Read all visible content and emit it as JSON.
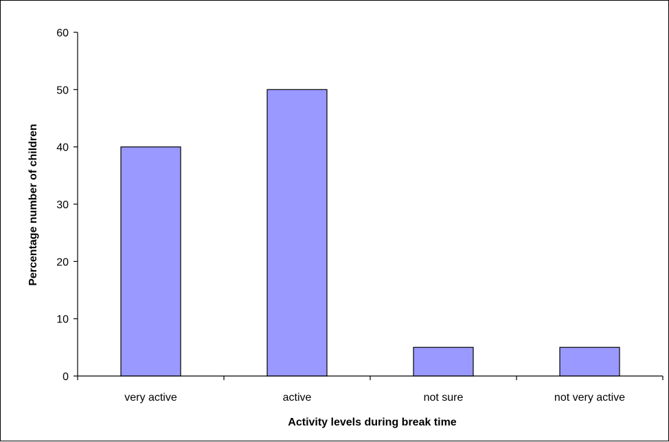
{
  "chart_data": {
    "type": "bar",
    "categories": [
      "very active",
      "active",
      "not sure",
      "not very active"
    ],
    "values": [
      40,
      50,
      5,
      5
    ],
    "title": "",
    "xlabel": "Activity levels during break time",
    "ylabel": "Percentage number of children",
    "ylim": [
      0,
      60
    ],
    "yticks": [
      "0",
      "10",
      "20",
      "30",
      "40",
      "50",
      "60"
    ],
    "grid": false,
    "legend": "none",
    "bar_color": "#9999ff",
    "bar_edge_color": "#000000"
  }
}
